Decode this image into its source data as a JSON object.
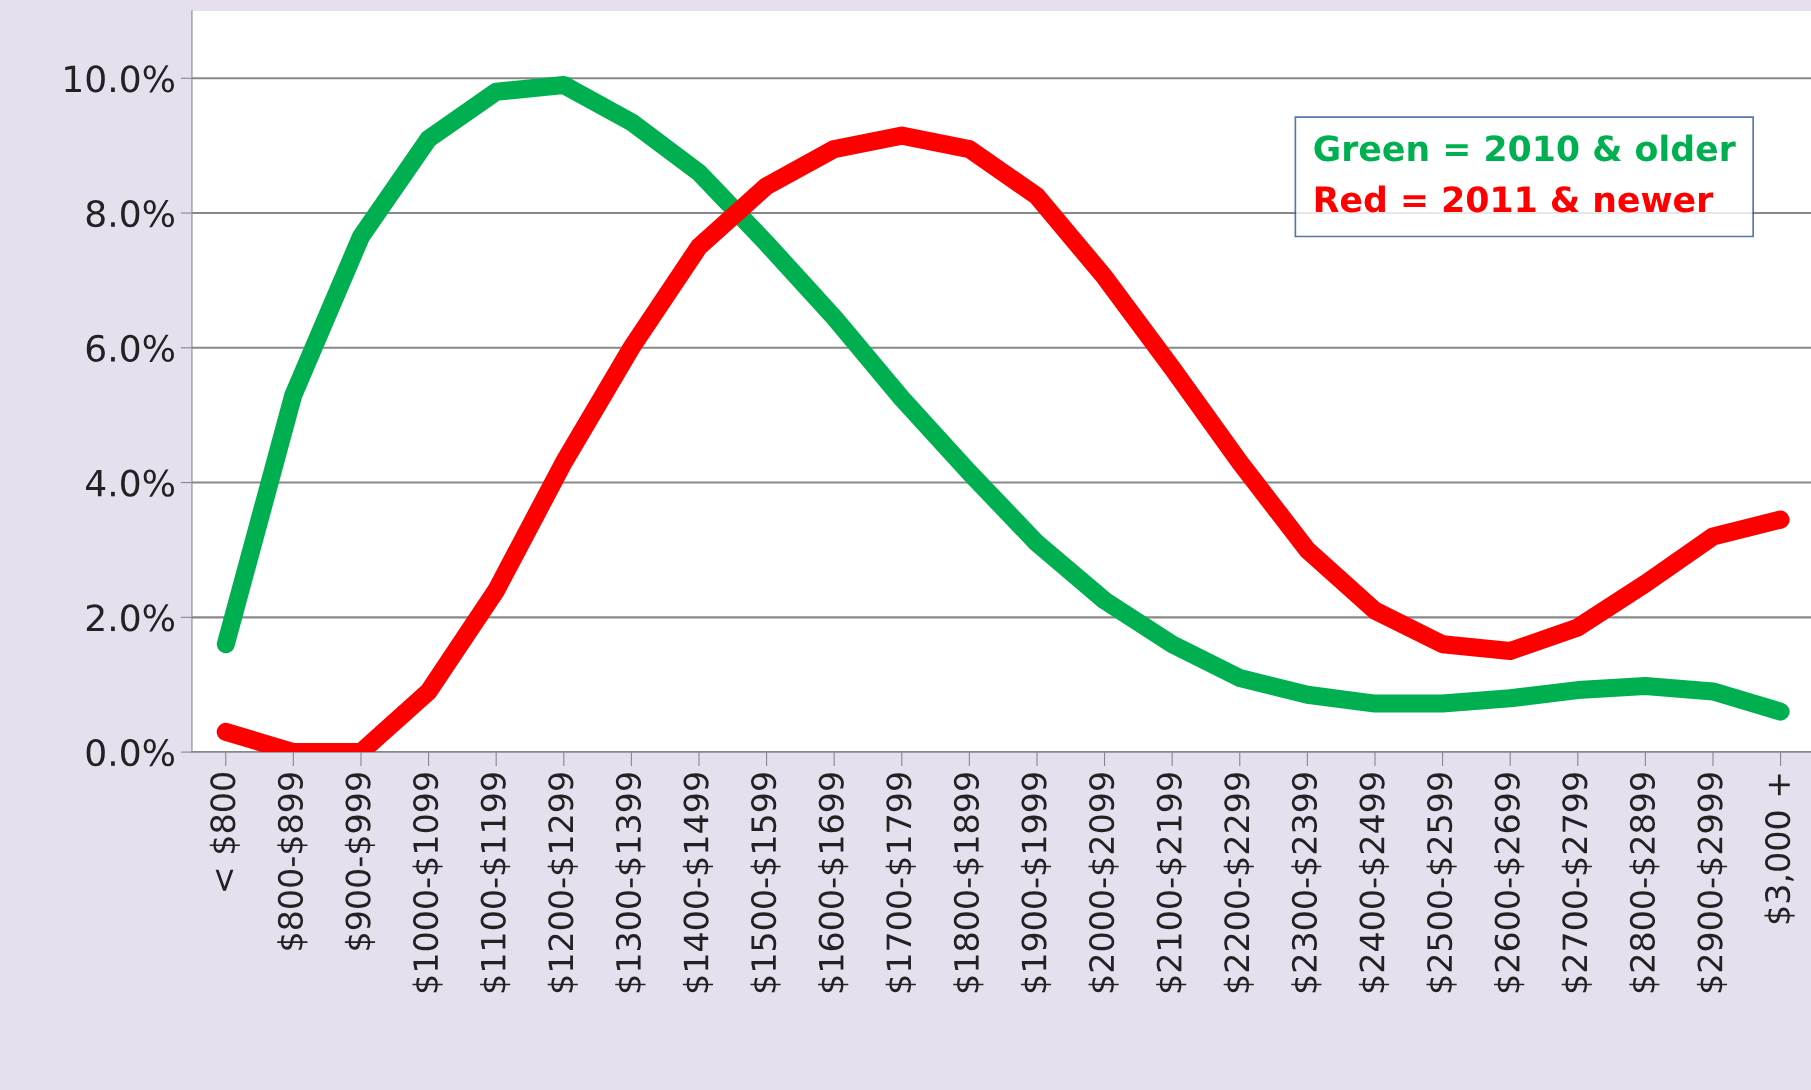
{
  "chart_data": {
    "type": "line",
    "categories": [
      "< $800",
      "$800-$899",
      "$900-$999",
      "$1000-$1099",
      "$1100-$1199",
      "$1200-$1299",
      "$1300-$1399",
      "$1400-$1499",
      "$1500-$1599",
      "$1600-$1699",
      "$1700-$1799",
      "$1800-$1899",
      "$1900-$1999",
      "$2000-$2099",
      "$2100-$2199",
      "$2200-$2299",
      "$2300-$2399",
      "$2400-$2499",
      "$2500-$2599",
      "$2600-$2699",
      "$2700-$2799",
      "$2800-$2899",
      "$2900-$2999",
      "$3,000 +"
    ],
    "series": [
      {
        "name": "Green = 2010 & older",
        "color": "#00b050",
        "values": [
          1.6,
          5.3,
          7.65,
          9.1,
          9.8,
          9.9,
          9.35,
          8.6,
          7.55,
          6.45,
          5.25,
          4.15,
          3.1,
          2.25,
          1.6,
          1.1,
          0.85,
          0.72,
          0.72,
          0.8,
          0.92,
          0.98,
          0.9,
          0.6
        ]
      },
      {
        "name": "Red = 2011 & newer",
        "color": "#ff0000",
        "values": [
          0.3,
          0.0,
          0.0,
          0.9,
          2.4,
          4.3,
          6.0,
          7.5,
          8.4,
          8.95,
          9.15,
          8.95,
          8.25,
          7.05,
          5.7,
          4.3,
          3.0,
          2.1,
          1.6,
          1.5,
          1.85,
          2.5,
          3.2,
          3.45
        ]
      }
    ],
    "ylim": [
      0,
      11
    ],
    "yticks": [
      {
        "value": 0,
        "label": "0.0%"
      },
      {
        "value": 2,
        "label": "2.0%"
      },
      {
        "value": 4,
        "label": "4.0%"
      },
      {
        "value": 6,
        "label": "6.0%"
      },
      {
        "value": 8,
        "label": "8.0%"
      },
      {
        "value": 10,
        "label": "10.0%"
      }
    ],
    "grid": "y",
    "legend": "top right",
    "line_style": "solid"
  }
}
